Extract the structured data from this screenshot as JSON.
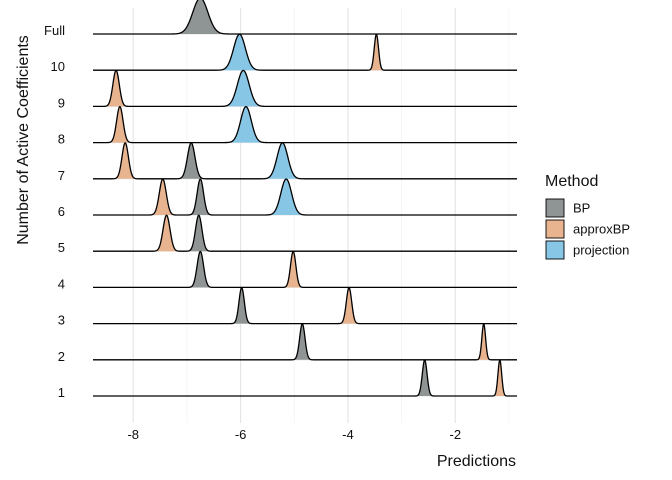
{
  "chart_data": {
    "type": "ridgeline",
    "xlabel": "Predictions",
    "ylabel": "Number of Active Coefficients",
    "xlim": [
      -8.75,
      -0.85
    ],
    "xticks": [
      {
        "value": -8,
        "label": "-8"
      },
      {
        "value": -6,
        "label": "-6"
      },
      {
        "value": -4,
        "label": "-4"
      },
      {
        "value": -2,
        "label": "-2"
      }
    ],
    "grid": true,
    "legend": {
      "title": "Method",
      "placement": "right"
    },
    "series": [
      {
        "name": "BP",
        "color": "#8f9494"
      },
      {
        "name": "approxBP",
        "color": "#e8b48f"
      },
      {
        "name": "projection",
        "color": "#88c6e6"
      }
    ],
    "categories": [
      "1",
      "2",
      "3",
      "4",
      "5",
      "6",
      "7",
      "8",
      "9",
      "10",
      "Full"
    ],
    "ridges": [
      {
        "category": "1",
        "peaks": [
          {
            "series": "BP",
            "center": -2.57,
            "sd": 0.045
          },
          {
            "series": "approxBP",
            "center": -1.17,
            "sd": 0.035
          }
        ]
      },
      {
        "category": "2",
        "peaks": [
          {
            "series": "BP",
            "center": -4.85,
            "sd": 0.05
          },
          {
            "series": "approxBP",
            "center": -1.47,
            "sd": 0.035
          }
        ]
      },
      {
        "category": "3",
        "peaks": [
          {
            "series": "BP",
            "center": -5.98,
            "sd": 0.05
          },
          {
            "series": "approxBP",
            "center": -3.98,
            "sd": 0.05
          }
        ]
      },
      {
        "category": "4",
        "peaks": [
          {
            "series": "BP",
            "center": -6.75,
            "sd": 0.06
          },
          {
            "series": "approxBP",
            "center": -5.02,
            "sd": 0.05
          }
        ]
      },
      {
        "category": "5",
        "peaks": [
          {
            "series": "BP",
            "center": -6.78,
            "sd": 0.06
          },
          {
            "series": "approxBP",
            "center": -7.38,
            "sd": 0.065
          }
        ]
      },
      {
        "category": "6",
        "peaks": [
          {
            "series": "BP",
            "center": -6.75,
            "sd": 0.06
          },
          {
            "series": "approxBP",
            "center": -7.45,
            "sd": 0.065
          },
          {
            "series": "projection",
            "center": -5.15,
            "sd": 0.1
          }
        ]
      },
      {
        "category": "7",
        "peaks": [
          {
            "series": "BP",
            "center": -6.92,
            "sd": 0.07
          },
          {
            "series": "approxBP",
            "center": -8.15,
            "sd": 0.06
          },
          {
            "series": "projection",
            "center": -5.22,
            "sd": 0.1
          }
        ]
      },
      {
        "category": "8",
        "peaks": [
          {
            "series": "approxBP",
            "center": -8.25,
            "sd": 0.06
          },
          {
            "series": "projection",
            "center": -5.9,
            "sd": 0.1
          }
        ]
      },
      {
        "category": "9",
        "peaks": [
          {
            "series": "approxBP",
            "center": -8.32,
            "sd": 0.06
          },
          {
            "series": "projection",
            "center": -5.95,
            "sd": 0.11
          }
        ]
      },
      {
        "category": "10",
        "peaks": [
          {
            "series": "approxBP",
            "center": -3.47,
            "sd": 0.04
          },
          {
            "series": "projection",
            "center": -6.02,
            "sd": 0.11
          }
        ]
      },
      {
        "category": "Full",
        "peaks": [
          {
            "series": "BP",
            "center": -6.75,
            "sd": 0.14
          }
        ]
      }
    ]
  }
}
